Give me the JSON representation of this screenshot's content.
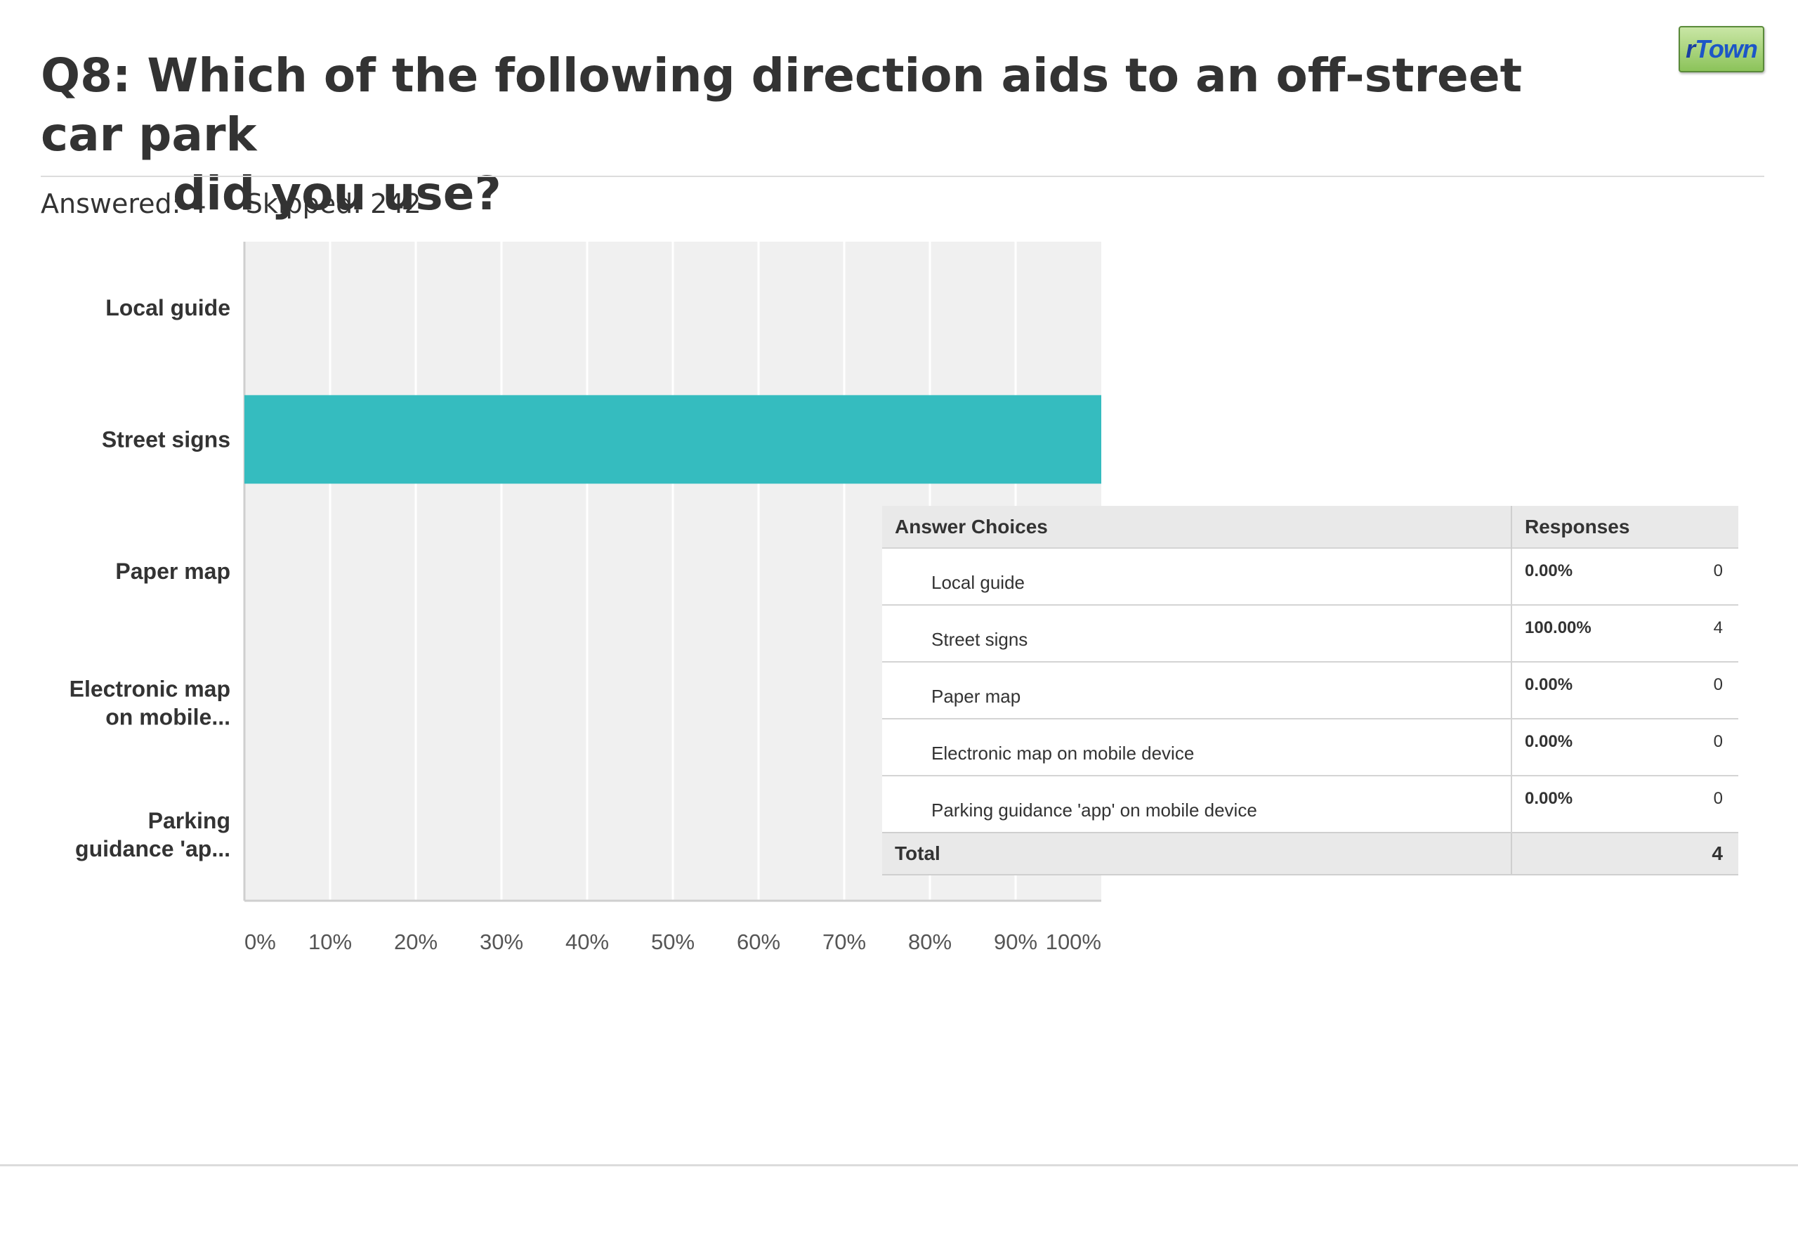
{
  "page": {
    "title_line1": "Q8: Which of the following direction aids to an off-street car park",
    "title_line2": "did you use?",
    "answered": "Answered: 4",
    "skipped": "Skipped: 242",
    "logo": {
      "r": "r",
      "rest": "Town"
    }
  },
  "colors": {
    "bar": "#35bcbf",
    "plot_bg": "#f0f0f0",
    "grid": "#ffffff"
  },
  "chart_data": {
    "type": "bar",
    "orientation": "horizontal",
    "categories": [
      "Local guide",
      "Street signs",
      "Paper map",
      "Electronic map on mobile...",
      "Parking guidance 'ap..."
    ],
    "category_label_lines": [
      [
        "Local guide"
      ],
      [
        "Street signs"
      ],
      [
        "Paper map"
      ],
      [
        "Electronic map",
        "on mobile..."
      ],
      [
        "Parking",
        "guidance 'ap..."
      ]
    ],
    "values": [
      0,
      100,
      0,
      0,
      0
    ],
    "xlim": [
      0,
      100
    ],
    "xticks": [
      0,
      10,
      20,
      30,
      40,
      50,
      60,
      70,
      80,
      90,
      100
    ],
    "xtick_labels": [
      "0%",
      "10%",
      "20%",
      "30%",
      "40%",
      "50%",
      "60%",
      "70%",
      "80%",
      "90%",
      "100%"
    ],
    "grid": true,
    "title": "",
    "xlabel": "",
    "ylabel": ""
  },
  "table": {
    "headers": {
      "choice": "Answer Choices",
      "responses": "Responses"
    },
    "rows": [
      {
        "choice": "Local guide",
        "percent": "0.00%",
        "count": "0"
      },
      {
        "choice": "Street signs",
        "percent": "100.00%",
        "count": "4"
      },
      {
        "choice": "Paper map",
        "percent": "0.00%",
        "count": "0"
      },
      {
        "choice": "Electronic map on mobile device",
        "percent": "0.00%",
        "count": "0"
      },
      {
        "choice": "Parking guidance 'app' on mobile device",
        "percent": "0.00%",
        "count": "0"
      }
    ],
    "total_label": "Total",
    "total_value": "4"
  }
}
